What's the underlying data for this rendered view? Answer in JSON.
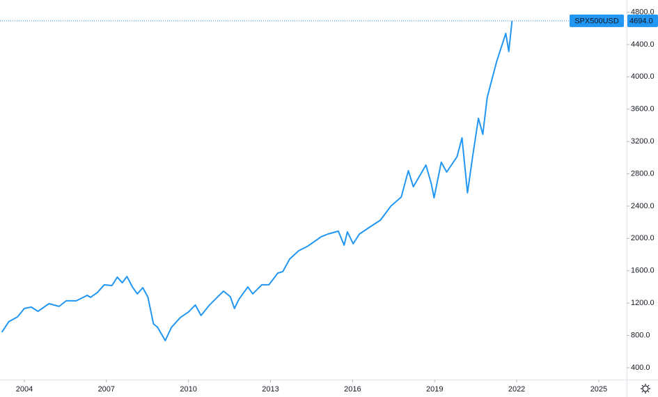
{
  "chart_data": {
    "type": "line",
    "series": [
      {
        "name": "SPX500USD",
        "color": "#2196f3",
        "x": [
          2003.18,
          2003.43,
          2003.75,
          2004.0,
          2004.25,
          2004.5,
          2004.9,
          2005.27,
          2005.53,
          2005.9,
          2006.3,
          2006.42,
          2006.67,
          2006.92,
          2007.2,
          2007.4,
          2007.58,
          2007.75,
          2007.95,
          2008.13,
          2008.33,
          2008.52,
          2008.72,
          2008.87,
          2009.15,
          2009.38,
          2009.7,
          2010.0,
          2010.25,
          2010.46,
          2010.77,
          2011.1,
          2011.28,
          2011.53,
          2011.68,
          2011.84,
          2012.17,
          2012.35,
          2012.68,
          2012.94,
          2013.27,
          2013.45,
          2013.7,
          2014.03,
          2014.34,
          2014.67,
          2014.85,
          2015.1,
          2015.48,
          2015.69,
          2015.81,
          2016.02,
          2016.25,
          2016.63,
          2017.02,
          2017.4,
          2017.78,
          2018.04,
          2018.22,
          2018.68,
          2018.88,
          2018.98,
          2019.24,
          2019.44,
          2019.82,
          2020.0,
          2020.2,
          2020.4,
          2020.6,
          2020.76,
          2020.92,
          2021.27,
          2021.6,
          2021.71,
          2021.83
        ],
        "values": [
          840,
          969,
          1029,
          1133,
          1150,
          1098,
          1193,
          1159,
          1228,
          1228,
          1296,
          1271,
          1331,
          1426,
          1417,
          1521,
          1452,
          1529,
          1400,
          1314,
          1391,
          1271,
          943,
          900,
          736,
          900,
          1021,
          1090,
          1176,
          1046,
          1176,
          1288,
          1348,
          1279,
          1133,
          1245,
          1400,
          1314,
          1426,
          1426,
          1572,
          1590,
          1745,
          1848,
          1900,
          1977,
          2021,
          2055,
          2090,
          1917,
          2081,
          1934,
          2055,
          2141,
          2227,
          2400,
          2512,
          2839,
          2640,
          2908,
          2675,
          2503,
          2943,
          2822,
          3012,
          3245,
          2564,
          3038,
          3486,
          3288,
          3745,
          4193,
          4538,
          4314,
          4694
        ]
      }
    ],
    "price_tag": {
      "value": 4694,
      "label": "4694.0"
    },
    "xlim": [
      2003.11,
      2026.02
    ],
    "xticks": [
      2004,
      2007,
      2010,
      2013,
      2016,
      2019,
      2022,
      2025
    ],
    "ylim": [
      253,
      4951
    ],
    "yticks": [
      {
        "value": 400,
        "label": "400.0"
      },
      {
        "value": 800,
        "label": "800.0"
      },
      {
        "value": 1200,
        "label": "1200.0"
      },
      {
        "value": 1600,
        "label": "1600.0"
      },
      {
        "value": 2000,
        "label": "2000.0"
      },
      {
        "value": 2400,
        "label": "2400.0"
      },
      {
        "value": 2800,
        "label": "2800.0"
      },
      {
        "value": 3200,
        "label": "3200.0"
      },
      {
        "value": 3600,
        "label": "3600.0"
      },
      {
        "value": 4000,
        "label": "4000.0"
      },
      {
        "value": 4400,
        "label": "4400.0"
      },
      {
        "value": 4800,
        "label": "4800.0"
      }
    ]
  }
}
